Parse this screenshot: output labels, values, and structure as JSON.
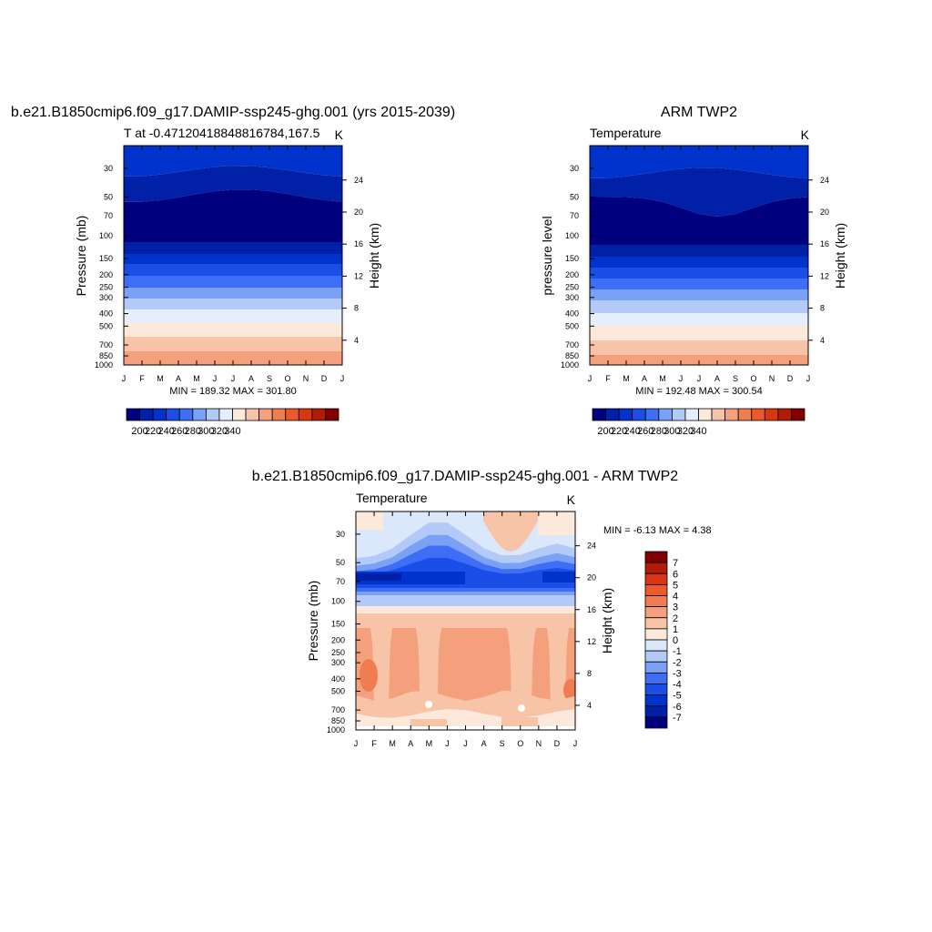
{
  "colors": {
    "abs_levels": [
      "#00007f",
      "#0020a8",
      "#0033cc",
      "#1a4ee6",
      "#3d6ef5",
      "#7ba1f7",
      "#b3c9f7",
      "#e4eefc",
      "#fde8dc",
      "#f8c4a8",
      "#f4a07c",
      "#f07d52",
      "#ea5a2a",
      "#d9370f",
      "#b21b07",
      "#800000"
    ],
    "diff_levels": [
      "#00007f",
      "#0020a8",
      "#0033cc",
      "#1a4ee6",
      "#3d6ef5",
      "#7ba1f7",
      "#b3c9f7",
      "#dbe8fb",
      "#fde8dc",
      "#f8c4a8",
      "#f4a07c",
      "#f07d52",
      "#ea5a2a",
      "#d9370f",
      "#b21b07",
      "#800000"
    ]
  },
  "chart_data": [
    {
      "type": "heatmap",
      "title": "b.e21.B1850cmip6.f09_g17.DAMIP-ssp245-ghg.001 (yrs 2015-2039)",
      "left_label": "T at -0.47120418848816784,167.5",
      "right_label": "K",
      "ylabel": "Pressure (mb)",
      "ylabel_right": "Height (km)",
      "min_max_text": "MIN = 189.32 MAX = 301.80",
      "x_ticks": [
        "J",
        "F",
        "M",
        "A",
        "M",
        "J",
        "J",
        "A",
        "S",
        "O",
        "N",
        "D",
        "J"
      ],
      "pressure_ticks": [
        "30",
        "50",
        "70",
        "100",
        "150",
        "200",
        "250",
        "300",
        "400",
        "500",
        "700",
        "850",
        "1000"
      ],
      "height_ticks": [
        "24",
        "20",
        "16",
        "12",
        "8",
        "4"
      ],
      "colorbar_labels": [
        "200",
        "220",
        "240",
        "260",
        "280",
        "300",
        "320",
        "340"
      ],
      "ylim_mb": [
        20,
        1000
      ],
      "scale": "log pressure",
      "colorbar_position": "bottom"
    },
    {
      "type": "heatmap",
      "title": "ARM TWP2",
      "left_label": "Temperature",
      "right_label": "K",
      "ylabel": "pressure level",
      "ylabel_right": "Height (km)",
      "min_max_text": "MIN = 192.48 MAX = 300.54",
      "x_ticks": [
        "J",
        "F",
        "M",
        "A",
        "M",
        "J",
        "J",
        "A",
        "S",
        "O",
        "N",
        "D",
        "J"
      ],
      "pressure_ticks": [
        "30",
        "50",
        "70",
        "100",
        "150",
        "200",
        "250",
        "300",
        "400",
        "500",
        "700",
        "850",
        "1000"
      ],
      "height_ticks": [
        "24",
        "20",
        "16",
        "12",
        "8",
        "4"
      ],
      "colorbar_labels": [
        "200",
        "220",
        "240",
        "260",
        "280",
        "300",
        "320",
        "340"
      ],
      "ylim_mb": [
        20,
        1000
      ],
      "scale": "log pressure",
      "colorbar_position": "bottom"
    },
    {
      "type": "heatmap",
      "title": "b.e21.B1850cmip6.f09_g17.DAMIP-ssp245-ghg.001 - ARM TWP2",
      "left_label": "Temperature",
      "right_label": "K",
      "ylabel": "Pressure (mb)",
      "ylabel_right": "Height (km)",
      "min_max_text": "MIN =  -6.13 MAX =   4.38",
      "x_ticks": [
        "J",
        "F",
        "M",
        "A",
        "M",
        "J",
        "J",
        "A",
        "S",
        "O",
        "N",
        "D",
        "J"
      ],
      "pressure_ticks": [
        "30",
        "50",
        "70",
        "100",
        "150",
        "200",
        "250",
        "300",
        "400",
        "500",
        "700",
        "850",
        "1000"
      ],
      "height_ticks": [
        "24",
        "20",
        "16",
        "12",
        "8",
        "4"
      ],
      "colorbar_labels": [
        "7",
        "6",
        "5",
        "4",
        "3",
        "2",
        "1",
        "0",
        "-1",
        "-2",
        "-3",
        "-4",
        "-5",
        "-6",
        "-7"
      ],
      "ylim_mb": [
        20,
        1000
      ],
      "scale": "log pressure",
      "colorbar_position": "right"
    }
  ]
}
